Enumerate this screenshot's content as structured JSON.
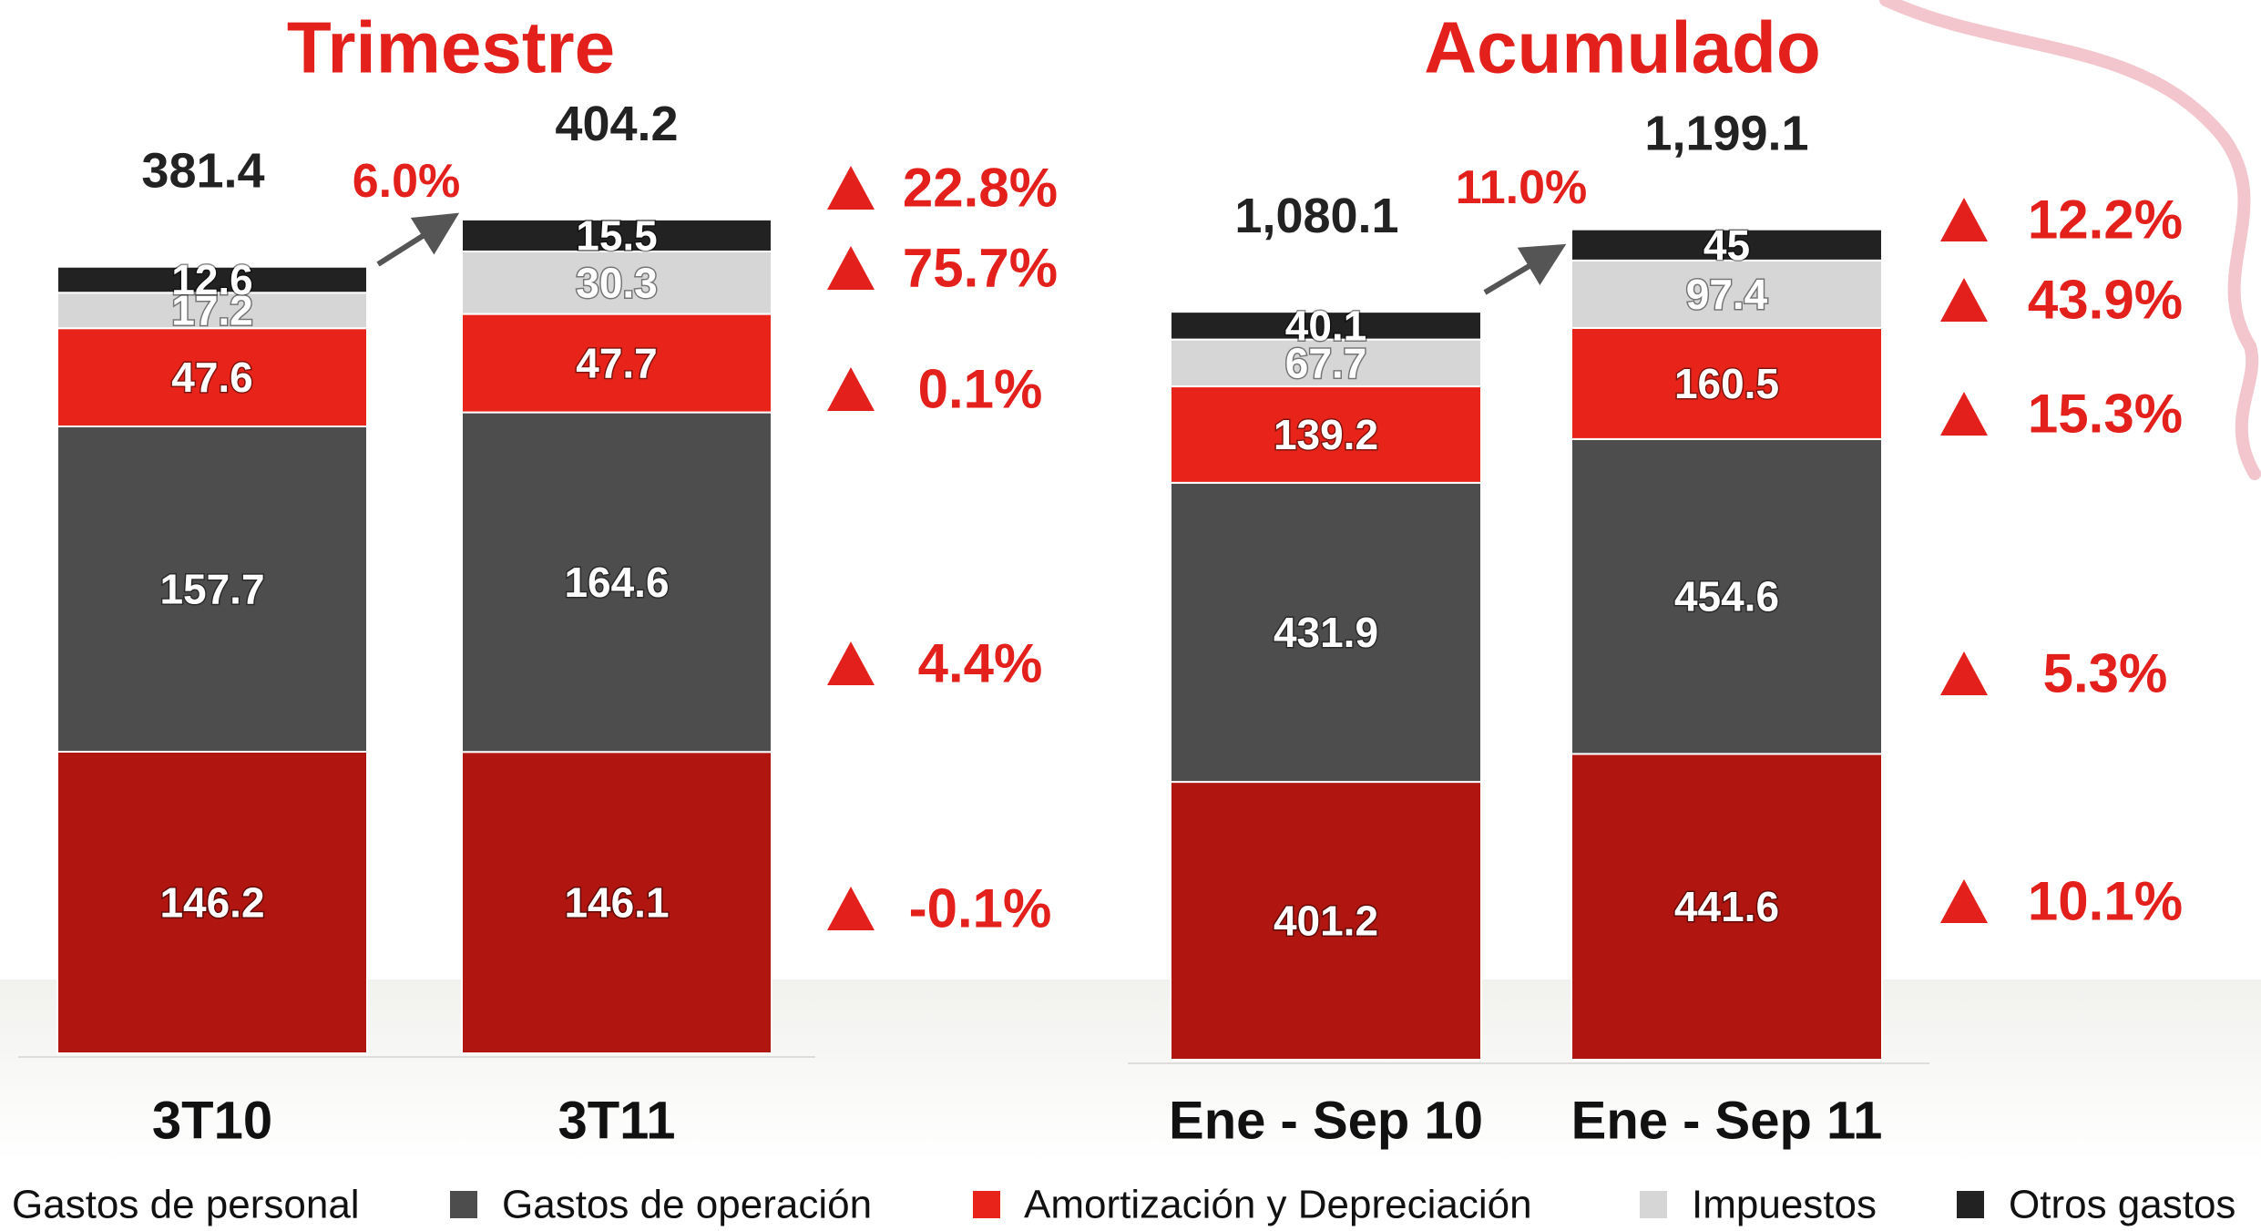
{
  "chart_data": [
    {
      "type": "stacked-bar",
      "title": "Trimestre",
      "categories": [
        "3T10",
        "3T11"
      ],
      "series": [
        {
          "name": "Gastos de personal",
          "color": "#b01510",
          "values": [
            146.2,
            146.1
          ]
        },
        {
          "name": "Gastos de operación",
          "color": "#4d4d4d",
          "values": [
            157.7,
            164.6
          ]
        },
        {
          "name": "Amortización y Depreciación",
          "color": "#e8231a",
          "values": [
            47.6,
            47.7
          ]
        },
        {
          "name": "Impuestos",
          "color": "#d6d6d6",
          "values": [
            17.2,
            30.3
          ]
        },
        {
          "name": "Otros gastos",
          "color": "#222222",
          "values": [
            12.6,
            15.5
          ]
        }
      ],
      "totals": [
        381.4,
        404.2
      ],
      "total_change": 6.0,
      "total_change_label": "6.0%",
      "changes": [
        -0.1,
        4.4,
        0.1,
        75.7,
        22.8
      ],
      "change_labels": [
        "-0.1%",
        "4.4%",
        "0.1%",
        "75.7%",
        "22.8%"
      ]
    },
    {
      "type": "stacked-bar",
      "title": "Acumulado",
      "categories": [
        "Ene - Sep 10",
        "Ene - Sep 11"
      ],
      "series": [
        {
          "name": "Gastos de personal",
          "color": "#b01510",
          "values": [
            401.2,
            441.6
          ]
        },
        {
          "name": "Gastos de operación",
          "color": "#4d4d4d",
          "values": [
            431.9,
            454.6
          ]
        },
        {
          "name": "Amortización y Depreciación",
          "color": "#e8231a",
          "values": [
            139.2,
            160.5
          ]
        },
        {
          "name": "Impuestos",
          "color": "#d6d6d6",
          "values": [
            67.7,
            97.4
          ]
        },
        {
          "name": "Otros gastos",
          "color": "#222222",
          "values": [
            40.1,
            45
          ]
        }
      ],
      "totals": [
        1080.1,
        1199.1
      ],
      "total_labels": [
        "1,080.1",
        "1,199.1"
      ],
      "total_change": 11.0,
      "total_change_label": "11.0%",
      "changes": [
        10.1,
        5.3,
        15.3,
        43.9,
        12.2
      ],
      "change_labels": [
        "10.1%",
        "5.3%",
        "15.3%",
        "43.9%",
        "12.2%"
      ]
    }
  ]
}
